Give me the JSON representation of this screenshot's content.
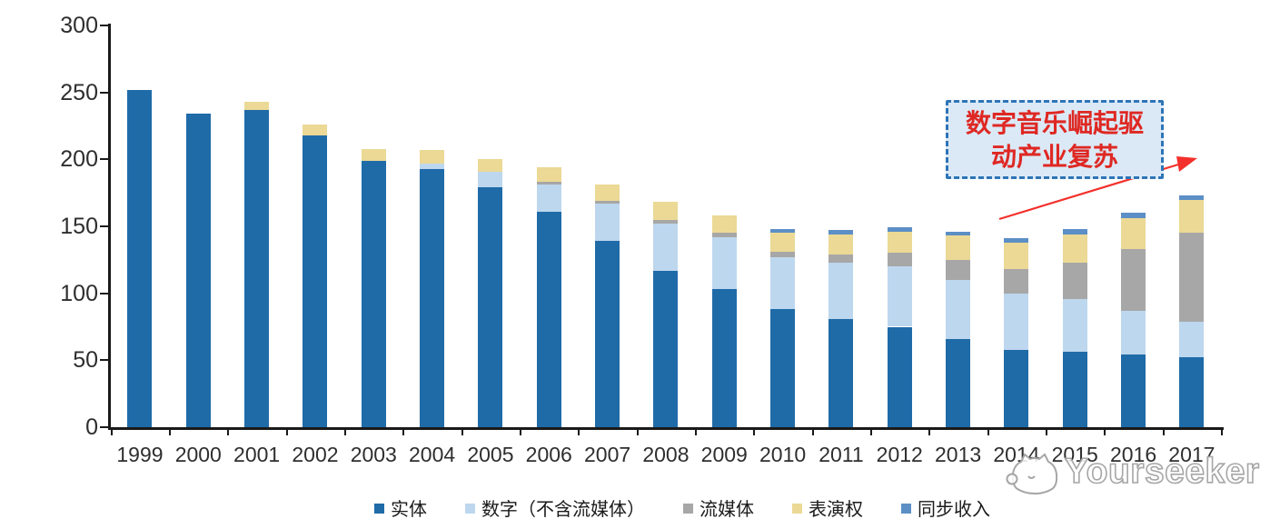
{
  "chart_data": {
    "type": "bar",
    "stacked": true,
    "title": "",
    "categories": [
      "1999",
      "2000",
      "2001",
      "2002",
      "2003",
      "2004",
      "2005",
      "2006",
      "2007",
      "2008",
      "2009",
      "2010",
      "2011",
      "2012",
      "2013",
      "2014",
      "2015",
      "2016",
      "2017"
    ],
    "series": [
      {
        "name": "实体",
        "color": "#1f6ba8",
        "values": [
          252,
          234,
          237,
          218,
          199,
          193,
          179,
          161,
          139,
          117,
          103,
          88,
          81,
          75,
          66,
          58,
          56,
          54,
          52
        ]
      },
      {
        "name": "数字（不含流媒体）",
        "color": "#bdd7ee",
        "values": [
          0,
          0,
          0,
          0,
          0,
          4,
          12,
          20,
          28,
          35,
          39,
          39,
          42,
          45,
          44,
          42,
          40,
          33,
          27
        ]
      },
      {
        "name": "流媒体",
        "color": "#a7a7a7",
        "values": [
          0,
          0,
          0,
          0,
          0,
          0,
          0,
          2,
          2,
          3,
          3,
          4,
          6,
          10,
          15,
          18,
          27,
          46,
          66
        ]
      },
      {
        "name": "表演权",
        "color": "#ebd995",
        "values": [
          0,
          0,
          6,
          8,
          9,
          10,
          9,
          11,
          12,
          13,
          13,
          14,
          15,
          16,
          18,
          20,
          21,
          23,
          25
        ]
      },
      {
        "name": "同步收入",
        "color": "#5c8fc6",
        "values": [
          0,
          0,
          0,
          0,
          0,
          0,
          0,
          0,
          0,
          0,
          0,
          3,
          3,
          3,
          3,
          3,
          4,
          4,
          3
        ]
      }
    ],
    "ylim": [
      0,
      300
    ],
    "yticks": [
      0,
      50,
      100,
      150,
      200,
      250,
      300
    ],
    "legend_position": "bottom",
    "grid": false
  },
  "annotation": {
    "line1": "数字音乐崛起驱",
    "line2": "动产业复苏"
  },
  "watermark": {
    "text": "Yourseeker"
  },
  "colors": {
    "axis": "#1a1a1a",
    "annotation_border": "#2e75b6",
    "annotation_fill": "#dbe9f6",
    "annotation_text": "#df2823",
    "arrow": "#f3302b",
    "watermark_outline": "#a6a6a6"
  }
}
